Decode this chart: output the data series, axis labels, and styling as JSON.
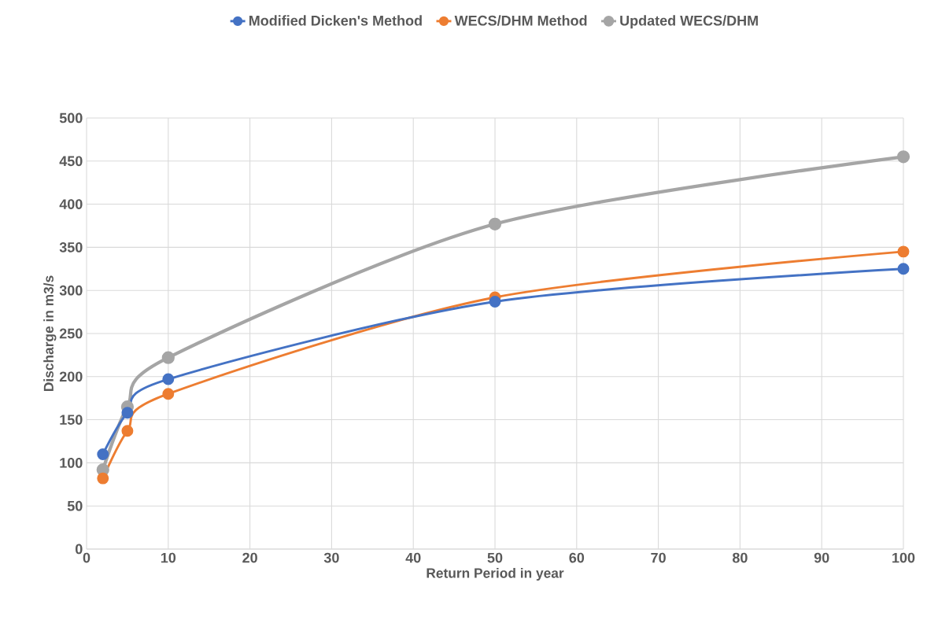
{
  "chart_data": {
    "type": "line",
    "xlabel": "Return Period in year",
    "ylabel": "Discharge in m3/s",
    "x": [
      2,
      5,
      10,
      50,
      100
    ],
    "series": [
      {
        "name": "Modified Dicken's Method",
        "color": "#4472c4",
        "values": [
          110,
          158,
          197,
          287,
          325
        ]
      },
      {
        "name": "WECS/DHM Method",
        "color": "#ed7d31",
        "values": [
          82,
          137,
          180,
          292,
          345
        ]
      },
      {
        "name": "Updated WECS/DHM",
        "color": "#a5a5a5",
        "values": [
          92,
          165,
          222,
          377,
          455
        ]
      }
    ],
    "xlim": [
      0,
      100
    ],
    "xticks": [
      0,
      10,
      20,
      30,
      40,
      50,
      60,
      70,
      80,
      90,
      100
    ],
    "ylim": [
      0,
      500
    ],
    "yticks": [
      0,
      50,
      100,
      150,
      200,
      250,
      300,
      350,
      400,
      450,
      500
    ],
    "grid": true,
    "legend": "top",
    "marker": "circle",
    "line_style": "solid"
  }
}
